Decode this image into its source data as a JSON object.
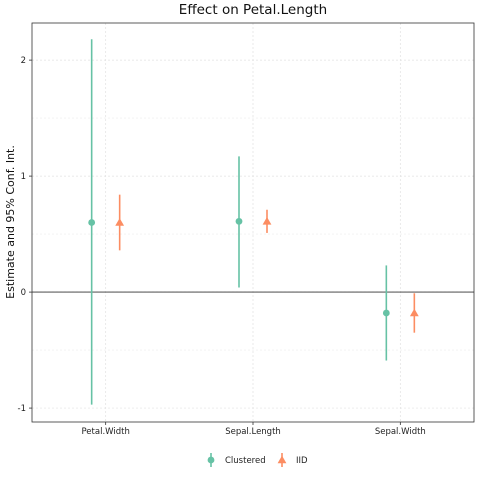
{
  "chart_data": {
    "type": "scatter",
    "title": "Effect on Petal.Length",
    "xlabel": "",
    "ylabel": "Estimate and 95% Conf. Int.",
    "categories": [
      "Petal.Width",
      "Sepal.Length",
      "Sepal.Width"
    ],
    "ylim": [
      -1.12,
      2.32
    ],
    "y_ticks": [
      2,
      1,
      0,
      -1
    ],
    "y_tick_labels": [
      "2",
      "1",
      "0",
      "-1"
    ],
    "reference_line": 0,
    "grid": true,
    "legend_position": "bottom",
    "series": [
      {
        "name": "Clustered",
        "marker": "circle",
        "color": "#66c2a5",
        "estimate": [
          0.6,
          0.61,
          -0.18
        ],
        "lower": [
          -0.97,
          0.04,
          -0.59
        ],
        "upper": [
          2.18,
          1.17,
          0.23
        ]
      },
      {
        "name": "IID",
        "marker": "triangle",
        "color": "#fc8d62",
        "estimate": [
          0.6,
          0.61,
          -0.18
        ],
        "lower": [
          0.36,
          0.51,
          -0.35
        ],
        "upper": [
          0.84,
          0.71,
          -0.01
        ]
      }
    ]
  }
}
